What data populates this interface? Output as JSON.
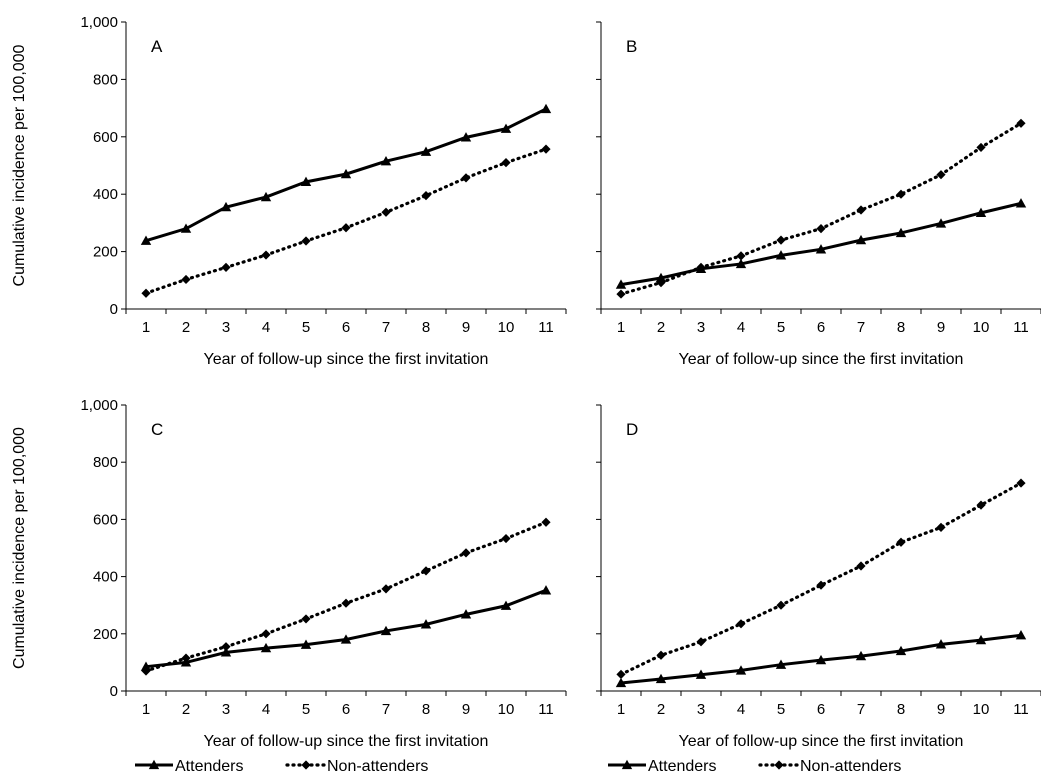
{
  "chart_data": [
    {
      "type": "line",
      "panel_label": "A",
      "x": [
        1,
        2,
        3,
        4,
        5,
        6,
        7,
        8,
        9,
        10,
        11
      ],
      "xlabel": "Year of follow-up since the first invitation",
      "ylabel": "Cumulative incidence per 100,000",
      "ylim": [
        0,
        1000
      ],
      "yticks": [
        0,
        200,
        400,
        600,
        800,
        1000
      ],
      "ytick_labels": [
        "0",
        "200",
        "400",
        "600",
        "800",
        "1,000"
      ],
      "grid": false,
      "series": [
        {
          "name": "Attenders",
          "style": "solid",
          "marker": "triangle",
          "values": [
            238,
            280,
            355,
            390,
            443,
            470,
            515,
            548,
            598,
            628,
            697
          ]
        },
        {
          "name": "Non-attenders",
          "style": "dotted",
          "marker": "diamond",
          "values": [
            55,
            103,
            145,
            188,
            237,
            283,
            337,
            395,
            457,
            510,
            557
          ]
        }
      ]
    },
    {
      "type": "line",
      "panel_label": "B",
      "x": [
        1,
        2,
        3,
        4,
        5,
        6,
        7,
        8,
        9,
        10,
        11
      ],
      "xlabel": "Year of follow-up since the first invitation",
      "ylabel": "",
      "ylim": [
        0,
        1000
      ],
      "grid": false,
      "series": [
        {
          "name": "Attenders",
          "style": "solid",
          "marker": "triangle",
          "values": [
            85,
            108,
            140,
            157,
            187,
            208,
            240,
            265,
            298,
            335,
            368
          ]
        },
        {
          "name": "Non-attenders",
          "style": "dotted",
          "marker": "diamond",
          "values": [
            52,
            92,
            145,
            185,
            240,
            280,
            345,
            400,
            468,
            563,
            647
          ]
        }
      ]
    },
    {
      "type": "line",
      "panel_label": "C",
      "x": [
        1,
        2,
        3,
        4,
        5,
        6,
        7,
        8,
        9,
        10,
        11
      ],
      "xlabel": "Year of follow-up since the first invitation",
      "ylabel": "Cumulative incidence per 100,000",
      "ylim": [
        0,
        1000
      ],
      "yticks": [
        0,
        200,
        400,
        600,
        800,
        1000
      ],
      "ytick_labels": [
        "0",
        "200",
        "400",
        "600",
        "800",
        "1,000"
      ],
      "grid": false,
      "series": [
        {
          "name": "Attenders",
          "style": "solid",
          "marker": "triangle",
          "values": [
            85,
            100,
            135,
            150,
            162,
            180,
            210,
            233,
            268,
            298,
            352
          ]
        },
        {
          "name": "Non-attenders",
          "style": "dotted",
          "marker": "diamond",
          "values": [
            70,
            115,
            155,
            200,
            252,
            307,
            357,
            420,
            483,
            533,
            590
          ]
        }
      ]
    },
    {
      "type": "line",
      "panel_label": "D",
      "x": [
        1,
        2,
        3,
        4,
        5,
        6,
        7,
        8,
        9,
        10,
        11
      ],
      "xlabel": "Year of follow-up since the first invitation",
      "ylabel": "",
      "ylim": [
        0,
        1000
      ],
      "grid": false,
      "series": [
        {
          "name": "Attenders",
          "style": "solid",
          "marker": "triangle",
          "values": [
            28,
            42,
            57,
            72,
            92,
            108,
            122,
            140,
            163,
            178,
            195
          ]
        },
        {
          "name": "Non-attenders",
          "style": "dotted",
          "marker": "diamond",
          "values": [
            58,
            125,
            172,
            235,
            300,
            370,
            437,
            520,
            572,
            650,
            727
          ]
        }
      ]
    }
  ],
  "legends": [
    {
      "items": [
        {
          "label": "Attenders",
          "style": "solid",
          "marker": "triangle"
        },
        {
          "label": "Non-attenders",
          "style": "dotted",
          "marker": "diamond"
        }
      ],
      "placement": "bottom-left"
    },
    {
      "items": [
        {
          "label": "Attenders",
          "style": "solid",
          "marker": "triangle"
        },
        {
          "label": "Non-attenders",
          "style": "dotted",
          "marker": "diamond"
        }
      ],
      "placement": "bottom-right"
    }
  ],
  "colors": {
    "line": "#000000",
    "axis": "#000000",
    "background": "#ffffff"
  }
}
